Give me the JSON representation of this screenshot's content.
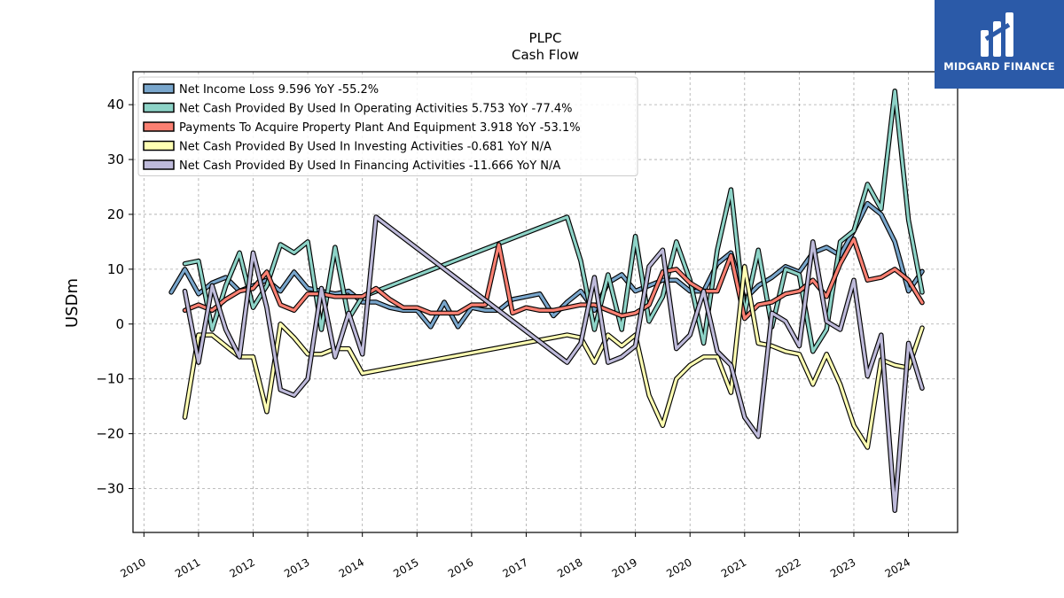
{
  "logo": {
    "text": "MIDGARD FINANCE"
  },
  "chart_data": {
    "type": "line",
    "title": "PLPC",
    "subtitle": "Cash Flow",
    "ylabel": "USDm",
    "xlabel": "",
    "xlim": [
      2009.8,
      2024.9
    ],
    "ylim": [
      -38,
      46
    ],
    "yticks": [
      -30,
      -20,
      -10,
      0,
      10,
      20,
      30,
      40
    ],
    "xticks": [
      2010,
      2011,
      2012,
      2013,
      2014,
      2015,
      2016,
      2017,
      2018,
      2019,
      2020,
      2021,
      2022,
      2023,
      2024
    ],
    "grid": true,
    "legend_position": "top-left",
    "series": [
      {
        "name": "Net Income Loss  9.596 YoY -55.2%",
        "color": "#79a6cc",
        "points": [
          [
            2010.5,
            5.8
          ],
          [
            2010.75,
            10
          ],
          [
            2011,
            5.5
          ],
          [
            2011.25,
            7.5
          ],
          [
            2011.5,
            8.5
          ],
          [
            2011.75,
            6
          ],
          [
            2012,
            7
          ],
          [
            2012.25,
            8
          ],
          [
            2012.5,
            6
          ],
          [
            2012.75,
            9.5
          ],
          [
            2013,
            6.5
          ],
          [
            2013.25,
            6
          ],
          [
            2013.5,
            5.5
          ],
          [
            2013.75,
            6
          ],
          [
            2014,
            4
          ],
          [
            2014.25,
            4
          ],
          [
            2014.5,
            3
          ],
          [
            2014.75,
            2.5
          ],
          [
            2015,
            2.5
          ],
          [
            2015.25,
            -0.5
          ],
          [
            2015.5,
            4
          ],
          [
            2015.75,
            -0.5
          ],
          [
            2016,
            3
          ],
          [
            2016.25,
            2.5
          ],
          [
            2016.5,
            2.5
          ],
          [
            2016.75,
            4.5
          ],
          [
            2017,
            5
          ],
          [
            2017.25,
            5.5
          ],
          [
            2017.5,
            1.5
          ],
          [
            2017.75,
            4
          ],
          [
            2018,
            6
          ],
          [
            2018.25,
            2.5
          ],
          [
            2018.5,
            7.5
          ],
          [
            2018.75,
            9
          ],
          [
            2019,
            6
          ],
          [
            2019.25,
            7
          ],
          [
            2019.5,
            8
          ],
          [
            2019.75,
            8
          ],
          [
            2020,
            6
          ],
          [
            2020.25,
            6
          ],
          [
            2020.5,
            11
          ],
          [
            2020.75,
            13
          ],
          [
            2021,
            4.5
          ],
          [
            2021.25,
            7
          ],
          [
            2021.5,
            8.5
          ],
          [
            2021.75,
            10.5
          ],
          [
            2022,
            9.5
          ],
          [
            2022.25,
            13
          ],
          [
            2022.5,
            14
          ],
          [
            2022.75,
            12.5
          ],
          [
            2023,
            17
          ],
          [
            2023.25,
            22
          ],
          [
            2023.5,
            20
          ],
          [
            2023.75,
            15
          ],
          [
            2024,
            6
          ],
          [
            2024.25,
            9.6
          ]
        ]
      },
      {
        "name": "Net Cash Provided By Used In Operating Activities  5.753 YoY -77.4%",
        "color": "#8dd3c7",
        "points": [
          [
            2010.75,
            11
          ],
          [
            2011,
            11.5
          ],
          [
            2011.25,
            -1
          ],
          [
            2011.5,
            7
          ],
          [
            2011.75,
            13
          ],
          [
            2012,
            3
          ],
          [
            2012.25,
            7
          ],
          [
            2012.5,
            14.5
          ],
          [
            2012.75,
            13
          ],
          [
            2013,
            15
          ],
          [
            2013.25,
            -1
          ],
          [
            2013.5,
            14
          ],
          [
            2013.75,
            1
          ],
          [
            2014,
            5
          ],
          [
            2017.75,
            19.5
          ],
          [
            2018,
            11.5
          ],
          [
            2018.25,
            -1
          ],
          [
            2018.5,
            9
          ],
          [
            2018.75,
            -1
          ],
          [
            2019,
            16
          ],
          [
            2019.25,
            0.5
          ],
          [
            2019.5,
            5
          ],
          [
            2019.75,
            15
          ],
          [
            2020,
            8
          ],
          [
            2020.25,
            -3.5
          ],
          [
            2020.5,
            13.5
          ],
          [
            2020.75,
            24.5
          ],
          [
            2021,
            2
          ],
          [
            2021.25,
            13.5
          ],
          [
            2021.5,
            -0.5
          ],
          [
            2021.75,
            10
          ],
          [
            2022,
            9
          ],
          [
            2022.25,
            -5
          ],
          [
            2022.5,
            -1
          ],
          [
            2022.75,
            15
          ],
          [
            2023,
            17
          ],
          [
            2023.25,
            25.5
          ],
          [
            2023.5,
            21
          ],
          [
            2023.75,
            42.5
          ],
          [
            2024,
            19
          ],
          [
            2024.25,
            5.8
          ]
        ]
      },
      {
        "name": "Payments To Acquire Property Plant And Equipment  3.918 YoY -53.1%",
        "color": "#fb8072",
        "points": [
          [
            2010.75,
            2.5
          ],
          [
            2011,
            3.5
          ],
          [
            2011.25,
            2.5
          ],
          [
            2011.5,
            4.5
          ],
          [
            2011.75,
            6
          ],
          [
            2012,
            6.5
          ],
          [
            2012.25,
            9.5
          ],
          [
            2012.5,
            3.5
          ],
          [
            2012.75,
            2.5
          ],
          [
            2013,
            5.5
          ],
          [
            2013.25,
            5.5
          ],
          [
            2013.5,
            5
          ],
          [
            2013.75,
            5
          ],
          [
            2014,
            5
          ],
          [
            2014.25,
            6.5
          ],
          [
            2014.5,
            4.5
          ],
          [
            2014.75,
            3
          ],
          [
            2015,
            3
          ],
          [
            2015.25,
            2
          ],
          [
            2015.5,
            2
          ],
          [
            2015.75,
            2
          ],
          [
            2016,
            3.5
          ],
          [
            2016.25,
            3.5
          ],
          [
            2016.5,
            14.5
          ],
          [
            2016.75,
            2
          ],
          [
            2017,
            3
          ],
          [
            2017.25,
            2.5
          ],
          [
            2017.5,
            2.5
          ],
          [
            2017.75,
            3
          ],
          [
            2018,
            3.5
          ],
          [
            2018.25,
            3.5
          ],
          [
            2018.5,
            2.5
          ],
          [
            2018.75,
            1.5
          ],
          [
            2019,
            2
          ],
          [
            2019.25,
            3.5
          ],
          [
            2019.5,
            9.5
          ],
          [
            2019.75,
            10
          ],
          [
            2020,
            7.5
          ],
          [
            2020.25,
            6
          ],
          [
            2020.5,
            6
          ],
          [
            2020.75,
            12.5
          ],
          [
            2021,
            1
          ],
          [
            2021.25,
            3.5
          ],
          [
            2021.5,
            4
          ],
          [
            2021.75,
            5.5
          ],
          [
            2022,
            6
          ],
          [
            2022.25,
            8
          ],
          [
            2022.5,
            5
          ],
          [
            2022.75,
            11
          ],
          [
            2023,
            15.5
          ],
          [
            2023.25,
            8
          ],
          [
            2023.5,
            8.5
          ],
          [
            2023.75,
            10
          ],
          [
            2024,
            8
          ],
          [
            2024.25,
            3.9
          ]
        ]
      },
      {
        "name": "Net Cash Provided By Used In Investing Activities  -0.681 YoY N/A",
        "color": "#ffffb3",
        "points": [
          [
            2010.75,
            -17
          ],
          [
            2011,
            -2
          ],
          [
            2011.25,
            -2
          ],
          [
            2011.5,
            -4
          ],
          [
            2011.75,
            -6
          ],
          [
            2012,
            -6
          ],
          [
            2012.25,
            -16
          ],
          [
            2012.5,
            0
          ],
          [
            2012.75,
            -2.5
          ],
          [
            2013,
            -5.5
          ],
          [
            2013.25,
            -5.5
          ],
          [
            2013.5,
            -4.5
          ],
          [
            2013.75,
            -4.5
          ],
          [
            2014,
            -9
          ],
          [
            2017.75,
            -2
          ],
          [
            2018,
            -2.5
          ],
          [
            2018.25,
            -7
          ],
          [
            2018.5,
            -2
          ],
          [
            2018.75,
            -4
          ],
          [
            2019,
            -2
          ],
          [
            2019.25,
            -13
          ],
          [
            2019.5,
            -18.5
          ],
          [
            2019.75,
            -10
          ],
          [
            2020,
            -7.5
          ],
          [
            2020.25,
            -6
          ],
          [
            2020.5,
            -6
          ],
          [
            2020.75,
            -12.5
          ],
          [
            2021,
            10.5
          ],
          [
            2021.25,
            -3.5
          ],
          [
            2021.5,
            -4
          ],
          [
            2021.75,
            -5
          ],
          [
            2022,
            -5.5
          ],
          [
            2022.25,
            -11
          ],
          [
            2022.5,
            -5.5
          ],
          [
            2022.75,
            -11
          ],
          [
            2023,
            -18.5
          ],
          [
            2023.25,
            -22.5
          ],
          [
            2023.5,
            -6.5
          ],
          [
            2023.75,
            -7.5
          ],
          [
            2024,
            -8
          ],
          [
            2024.25,
            -0.7
          ]
        ]
      },
      {
        "name": "Net Cash Provided By Used In Financing Activities  -11.666 YoY N/A",
        "color": "#bebada",
        "points": [
          [
            2010.75,
            6
          ],
          [
            2011,
            -7
          ],
          [
            2011.25,
            7
          ],
          [
            2011.5,
            -1
          ],
          [
            2011.75,
            -6
          ],
          [
            2012,
            13
          ],
          [
            2012.25,
            3
          ],
          [
            2012.5,
            -12
          ],
          [
            2012.75,
            -13
          ],
          [
            2013,
            -10
          ],
          [
            2013.25,
            6.5
          ],
          [
            2013.5,
            -6
          ],
          [
            2013.75,
            2
          ],
          [
            2014,
            -5.5
          ],
          [
            2014.25,
            19.5
          ],
          [
            2017.75,
            -7
          ],
          [
            2018,
            -3.5
          ],
          [
            2018.25,
            8.5
          ],
          [
            2018.5,
            -7
          ],
          [
            2018.75,
            -6
          ],
          [
            2019,
            -4
          ],
          [
            2019.25,
            10.5
          ],
          [
            2019.5,
            13.5
          ],
          [
            2019.75,
            -4.5
          ],
          [
            2020,
            -2
          ],
          [
            2020.25,
            6
          ],
          [
            2020.5,
            -5
          ],
          [
            2020.75,
            -7.5
          ],
          [
            2021,
            -17
          ],
          [
            2021.25,
            -20.5
          ],
          [
            2021.5,
            2
          ],
          [
            2021.75,
            0.5
          ],
          [
            2022,
            -4
          ],
          [
            2022.25,
            15
          ],
          [
            2022.5,
            0.5
          ],
          [
            2022.75,
            -1
          ],
          [
            2023,
            8
          ],
          [
            2023.25,
            -9.5
          ],
          [
            2023.5,
            -2
          ],
          [
            2023.75,
            -34
          ],
          [
            2024,
            -3.5
          ],
          [
            2024.25,
            -11.7
          ]
        ]
      }
    ]
  }
}
